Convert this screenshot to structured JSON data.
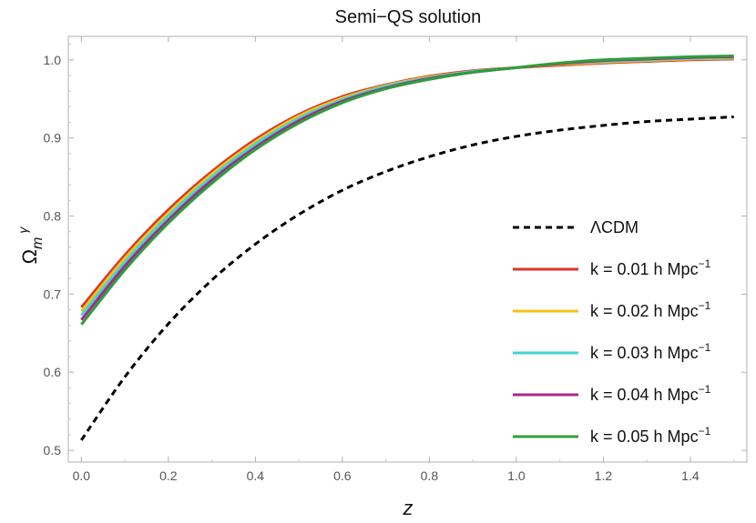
{
  "chart_data": {
    "type": "line",
    "title": "Semi−QS solution",
    "xlabel": "z",
    "ylabel": {
      "base": "Ω",
      "sub": "m",
      "sup": "γ"
    },
    "xlim": [
      -0.03,
      1.53
    ],
    "ylim": [
      0.485,
      1.03
    ],
    "xticks": [
      0.0,
      0.2,
      0.4,
      0.6,
      0.8,
      1.0,
      1.2,
      1.4
    ],
    "xtick_labels": [
      "0.0",
      "0.2",
      "0.4",
      "0.6",
      "0.8",
      "1.0",
      "1.2",
      "1.4"
    ],
    "yticks": [
      0.5,
      0.6,
      0.7,
      0.8,
      0.9,
      1.0
    ],
    "ytick_labels": [
      "0.5",
      "0.6",
      "0.7",
      "0.8",
      "0.9",
      "1.0"
    ],
    "grid": false,
    "legend_position": "right",
    "x": [
      0.0,
      0.1,
      0.2,
      0.3,
      0.4,
      0.5,
      0.6,
      0.7,
      0.8,
      0.9,
      1.0,
      1.1,
      1.2,
      1.3,
      1.4,
      1.5
    ],
    "series": [
      {
        "name": "ΛCDM",
        "label_main": "ΛCDM",
        "label_sup": "",
        "color": "#000000",
        "dashed": true,
        "values": [
          0.513,
          0.594,
          0.662,
          0.718,
          0.764,
          0.802,
          0.833,
          0.857,
          0.876,
          0.891,
          0.902,
          0.91,
          0.916,
          0.921,
          0.924,
          0.927
        ]
      },
      {
        "name": "k = 0.01 h Mpc−1",
        "label_main": "k = 0.01 h Mpc",
        "label_sup": "−1",
        "color": "#d9352a",
        "dashed": false,
        "values": [
          0.683,
          0.75,
          0.808,
          0.857,
          0.898,
          0.93,
          0.953,
          0.968,
          0.979,
          0.986,
          0.99,
          0.993,
          0.996,
          0.998,
          1.0,
          1.001
        ]
      },
      {
        "name": "k = 0.02 h Mpc−1",
        "label_main": "k = 0.02 h Mpc",
        "label_sup": "−1",
        "color": "#f2c31a",
        "dashed": false,
        "values": [
          0.678,
          0.746,
          0.804,
          0.854,
          0.895,
          0.928,
          0.951,
          0.967,
          0.978,
          0.985,
          0.99,
          0.994,
          0.997,
          0.999,
          1.001,
          1.002
        ]
      },
      {
        "name": "k = 0.03 h Mpc−1",
        "label_main": "k = 0.03 h Mpc",
        "label_sup": "−1",
        "color": "#3fd4d4",
        "dashed": false,
        "values": [
          0.673,
          0.741,
          0.8,
          0.85,
          0.892,
          0.925,
          0.949,
          0.966,
          0.977,
          0.985,
          0.99,
          0.995,
          0.998,
          1.0,
          1.002,
          1.003
        ]
      },
      {
        "name": "k = 0.04 h Mpc−1",
        "label_main": "k = 0.04 h Mpc",
        "label_sup": "−1",
        "color": "#a8278a",
        "dashed": false,
        "values": [
          0.667,
          0.736,
          0.795,
          0.846,
          0.888,
          0.922,
          0.947,
          0.964,
          0.976,
          0.984,
          0.99,
          0.995,
          0.999,
          1.001,
          1.003,
          1.004
        ]
      },
      {
        "name": "k = 0.05 h Mpc−1",
        "label_main": "k = 0.05 h Mpc",
        "label_sup": "−1",
        "color": "#2e9e3c",
        "dashed": false,
        "values": [
          0.661,
          0.731,
          0.791,
          0.842,
          0.885,
          0.919,
          0.945,
          0.963,
          0.975,
          0.984,
          0.99,
          0.996,
          1.0,
          1.002,
          1.004,
          1.005
        ]
      }
    ]
  }
}
